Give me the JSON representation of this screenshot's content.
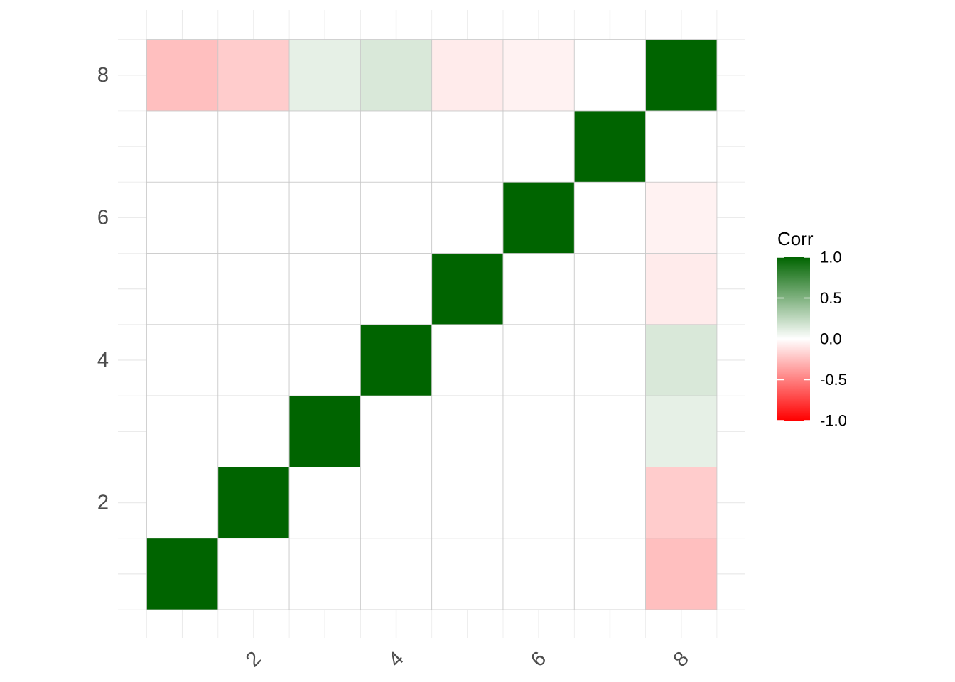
{
  "chart_data": {
    "type": "heatmap",
    "x_categories": [
      1,
      2,
      3,
      4,
      5,
      6,
      7,
      8
    ],
    "y_categories": [
      1,
      2,
      3,
      4,
      5,
      6,
      7,
      8
    ],
    "x_tick_labels": [
      "2",
      "4",
      "6",
      "8"
    ],
    "y_tick_labels": [
      "2",
      "4",
      "6",
      "8"
    ],
    "x_tick_values": [
      2,
      4,
      6,
      8
    ],
    "y_tick_values": [
      2,
      4,
      6,
      8
    ],
    "values": [
      [
        1.0,
        0.0,
        0.0,
        0.0,
        0.0,
        0.0,
        0.0,
        -0.25
      ],
      [
        0.0,
        1.0,
        0.0,
        0.0,
        0.0,
        0.0,
        0.0,
        -0.2
      ],
      [
        0.0,
        0.0,
        1.0,
        0.0,
        0.0,
        0.0,
        0.0,
        0.1
      ],
      [
        0.0,
        0.0,
        0.0,
        1.0,
        0.0,
        0.0,
        0.0,
        0.15
      ],
      [
        0.0,
        0.0,
        0.0,
        0.0,
        1.0,
        0.0,
        0.0,
        -0.08
      ],
      [
        0.0,
        0.0,
        0.0,
        0.0,
        0.0,
        1.0,
        0.0,
        -0.05
      ],
      [
        0.0,
        0.0,
        0.0,
        0.0,
        0.0,
        0.0,
        1.0,
        0.0
      ],
      [
        -0.25,
        -0.2,
        0.1,
        0.15,
        -0.08,
        -0.05,
        0.0,
        1.0
      ]
    ],
    "legend": {
      "title": "Corr",
      "labels": [
        "1.0",
        "0.5",
        "0.0",
        "-0.5",
        "-1.0"
      ],
      "values": [
        1.0,
        0.5,
        0.0,
        -0.5,
        -1.0
      ],
      "placement": "right"
    },
    "color_scale": {
      "low": "#FF0000",
      "mid": "#FFFFFF",
      "high": "#006400",
      "limits": [
        -1,
        1
      ]
    },
    "cell_border_color": "#C8C8C8",
    "grid_color": "#EBEBEB",
    "x_tick_label_angle": -45
  }
}
